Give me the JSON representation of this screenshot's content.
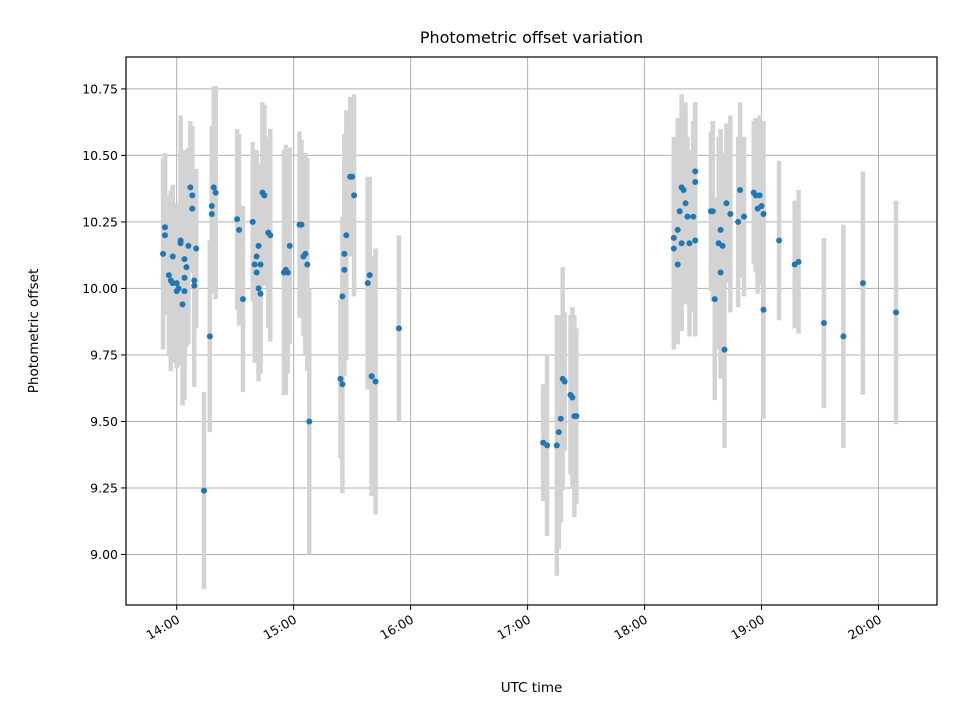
{
  "chart_data": {
    "type": "scatter",
    "title": "Photometric offset variation",
    "xlabel": "UTC time",
    "ylabel": "Photometric offset",
    "x_axis_kind": "time (hours, UTC)",
    "xlim": [
      "13:34",
      "20:30"
    ],
    "ylim": [
      8.81,
      10.87
    ],
    "x_ticks": [
      "14:00",
      "15:00",
      "16:00",
      "17:00",
      "18:00",
      "19:00",
      "20:00"
    ],
    "y_ticks": [
      "9.00",
      "9.25",
      "9.50",
      "9.75",
      "10.00",
      "10.25",
      "10.50",
      "10.75"
    ],
    "grid": true,
    "colors": {
      "points": "#1f77b4",
      "errorbars": "#d3d3d3",
      "grid": "#b0b0b0"
    },
    "series": [
      {
        "points": [
          {
            "x": "13:53",
            "y": 10.13,
            "yerr": 0.36
          },
          {
            "x": "13:54",
            "y": 10.2,
            "yerr": 0.3
          },
          {
            "x": "13:54",
            "y": 10.23,
            "yerr": 0.28
          },
          {
            "x": "13:56",
            "y": 10.05,
            "yerr": 0.3
          },
          {
            "x": "13:57",
            "y": 10.03,
            "yerr": 0.34
          },
          {
            "x": "13:58",
            "y": 10.12,
            "yerr": 0.27
          },
          {
            "x": "13:58",
            "y": 10.02,
            "yerr": 0.3
          },
          {
            "x": "14:00",
            "y": 10.02,
            "yerr": 0.3
          },
          {
            "x": "14:00",
            "y": 9.99,
            "yerr": 0.29
          },
          {
            "x": "14:01",
            "y": 10.0,
            "yerr": 0.28
          },
          {
            "x": "14:02",
            "y": 10.17,
            "yerr": 0.35
          },
          {
            "x": "14:02",
            "y": 10.18,
            "yerr": 0.47
          },
          {
            "x": "14:03",
            "y": 9.94,
            "yerr": 0.38
          },
          {
            "x": "14:04",
            "y": 10.11,
            "yerr": 0.41
          },
          {
            "x": "14:04",
            "y": 9.99,
            "yerr": 0.41
          },
          {
            "x": "14:04",
            "y": 10.04,
            "yerr": 0.34
          },
          {
            "x": "14:05",
            "y": 10.08,
            "yerr": 0.3
          },
          {
            "x": "14:06",
            "y": 10.16,
            "yerr": 0.37
          },
          {
            "x": "14:07",
            "y": 10.38,
            "yerr": 0.25
          },
          {
            "x": "14:08",
            "y": 10.35,
            "yerr": 0.26
          },
          {
            "x": "14:08",
            "y": 10.3,
            "yerr": 0.24
          },
          {
            "x": "14:09",
            "y": 10.01,
            "yerr": 0.38
          },
          {
            "x": "14:09",
            "y": 10.03,
            "yerr": 0.3
          },
          {
            "x": "14:10",
            "y": 10.15,
            "yerr": 0.3
          },
          {
            "x": "14:14",
            "y": 9.24,
            "yerr": 0.37
          },
          {
            "x": "14:17",
            "y": 9.82,
            "yerr": 0.36
          },
          {
            "x": "14:18",
            "y": 10.31,
            "yerr": 0.3
          },
          {
            "x": "14:18",
            "y": 10.28,
            "yerr": 0.3
          },
          {
            "x": "14:19",
            "y": 10.38,
            "yerr": 0.38
          },
          {
            "x": "14:20",
            "y": 10.36,
            "yerr": 0.4
          },
          {
            "x": "14:31",
            "y": 10.26,
            "yerr": 0.34
          },
          {
            "x": "14:32",
            "y": 10.22,
            "yerr": 0.36
          },
          {
            "x": "14:34",
            "y": 9.96,
            "yerr": 0.35
          },
          {
            "x": "14:39",
            "y": 10.25,
            "yerr": 0.3
          },
          {
            "x": "14:40",
            "y": 10.09,
            "yerr": 0.37
          },
          {
            "x": "14:41",
            "y": 10.12,
            "yerr": 0.4
          },
          {
            "x": "14:41",
            "y": 10.06,
            "yerr": 0.3
          },
          {
            "x": "14:42",
            "y": 10.16,
            "yerr": 0.3
          },
          {
            "x": "14:42",
            "y": 10.0,
            "yerr": 0.35
          },
          {
            "x": "14:43",
            "y": 9.98,
            "yerr": 0.3
          },
          {
            "x": "14:43",
            "y": 10.09,
            "yerr": 0.38
          },
          {
            "x": "14:44",
            "y": 10.36,
            "yerr": 0.34
          },
          {
            "x": "14:45",
            "y": 10.35,
            "yerr": 0.34
          },
          {
            "x": "14:47",
            "y": 10.21,
            "yerr": 0.36
          },
          {
            "x": "14:48",
            "y": 10.2,
            "yerr": 0.4
          },
          {
            "x": "14:55",
            "y": 10.06,
            "yerr": 0.46
          },
          {
            "x": "14:56",
            "y": 10.07,
            "yerr": 0.47
          },
          {
            "x": "14:57",
            "y": 10.06,
            "yerr": 0.38
          },
          {
            "x": "14:58",
            "y": 10.16,
            "yerr": 0.37
          },
          {
            "x": "15:03",
            "y": 10.24,
            "yerr": 0.35
          },
          {
            "x": "15:04",
            "y": 10.24,
            "yerr": 0.32
          },
          {
            "x": "15:05",
            "y": 10.12,
            "yerr": 0.3
          },
          {
            "x": "15:06",
            "y": 10.13,
            "yerr": 0.38
          },
          {
            "x": "15:07",
            "y": 10.09,
            "yerr": 0.4
          },
          {
            "x": "15:08",
            "y": 9.5,
            "yerr": 0.5
          },
          {
            "x": "15:24",
            "y": 9.66,
            "yerr": 0.3
          },
          {
            "x": "15:25",
            "y": 9.64,
            "yerr": 0.41
          },
          {
            "x": "15:25",
            "y": 9.97,
            "yerr": 0.3
          },
          {
            "x": "15:26",
            "y": 10.07,
            "yerr": 0.4
          },
          {
            "x": "15:26",
            "y": 10.13,
            "yerr": 0.45
          },
          {
            "x": "15:27",
            "y": 10.2,
            "yerr": 0.47
          },
          {
            "x": "15:29",
            "y": 10.42,
            "yerr": 0.3
          },
          {
            "x": "15:30",
            "y": 10.42,
            "yerr": 0.3
          },
          {
            "x": "15:31",
            "y": 10.35,
            "yerr": 0.38
          },
          {
            "x": "15:38",
            "y": 10.02,
            "yerr": 0.4
          },
          {
            "x": "15:39",
            "y": 10.05,
            "yerr": 0.37
          },
          {
            "x": "15:40",
            "y": 9.67,
            "yerr": 0.45
          },
          {
            "x": "15:40",
            "y": 9.67,
            "yerr": 0.45
          },
          {
            "x": "15:42",
            "y": 9.65,
            "yerr": 0.5
          },
          {
            "x": "15:54",
            "y": 9.85,
            "yerr": 0.35
          },
          {
            "x": "17:08",
            "y": 9.42,
            "yerr": 0.22
          },
          {
            "x": "17:10",
            "y": 9.41,
            "yerr": 0.34
          },
          {
            "x": "17:15",
            "y": 9.41,
            "yerr": 0.49
          },
          {
            "x": "17:16",
            "y": 9.46,
            "yerr": 0.44
          },
          {
            "x": "17:17",
            "y": 9.51,
            "yerr": 0.39
          },
          {
            "x": "17:18",
            "y": 9.66,
            "yerr": 0.42
          },
          {
            "x": "17:19",
            "y": 9.65,
            "yerr": 0.26
          },
          {
            "x": "17:22",
            "y": 9.6,
            "yerr": 0.3
          },
          {
            "x": "17:23",
            "y": 9.59,
            "yerr": 0.34
          },
          {
            "x": "17:24",
            "y": 9.52,
            "yerr": 0.38
          },
          {
            "x": "17:25",
            "y": 9.52,
            "yerr": 0.33
          },
          {
            "x": "18:15",
            "y": 10.19,
            "yerr": 0.38
          },
          {
            "x": "18:15",
            "y": 10.15,
            "yerr": 0.38
          },
          {
            "x": "18:17",
            "y": 10.09,
            "yerr": 0.3
          },
          {
            "x": "18:17",
            "y": 10.22,
            "yerr": 0.42
          },
          {
            "x": "18:18",
            "y": 10.29,
            "yerr": 0.33
          },
          {
            "x": "18:19",
            "y": 10.17,
            "yerr": 0.33
          },
          {
            "x": "18:19",
            "y": 10.38,
            "yerr": 0.35
          },
          {
            "x": "18:20",
            "y": 10.37,
            "yerr": 0.3
          },
          {
            "x": "18:21",
            "y": 10.32,
            "yerr": 0.38
          },
          {
            "x": "18:22",
            "y": 10.27,
            "yerr": 0.3
          },
          {
            "x": "18:23",
            "y": 10.17,
            "yerr": 0.35
          },
          {
            "x": "18:25",
            "y": 10.27,
            "yerr": 0.36
          },
          {
            "x": "18:26",
            "y": 10.4,
            "yerr": 0.3
          },
          {
            "x": "18:26",
            "y": 10.44,
            "yerr": 0.26
          },
          {
            "x": "18:26",
            "y": 10.18,
            "yerr": 0.36
          },
          {
            "x": "18:34",
            "y": 10.29,
            "yerr": 0.3
          },
          {
            "x": "18:35",
            "y": 10.29,
            "yerr": 0.34
          },
          {
            "x": "18:36",
            "y": 9.96,
            "yerr": 0.38
          },
          {
            "x": "18:38",
            "y": 10.17,
            "yerr": 0.4
          },
          {
            "x": "18:39",
            "y": 10.22,
            "yerr": 0.38
          },
          {
            "x": "18:39",
            "y": 10.06,
            "yerr": 0.4
          },
          {
            "x": "18:40",
            "y": 10.16,
            "yerr": 0.35
          },
          {
            "x": "18:41",
            "y": 9.77,
            "yerr": 0.37
          },
          {
            "x": "18:42",
            "y": 10.32,
            "yerr": 0.3
          },
          {
            "x": "18:44",
            "y": 10.28,
            "yerr": 0.37
          },
          {
            "x": "18:48",
            "y": 10.25,
            "yerr": 0.32
          },
          {
            "x": "18:49",
            "y": 10.37,
            "yerr": 0.33
          },
          {
            "x": "18:51",
            "y": 10.27,
            "yerr": 0.3
          },
          {
            "x": "18:56",
            "y": 10.36,
            "yerr": 0.27
          },
          {
            "x": "18:57",
            "y": 10.35,
            "yerr": 0.29
          },
          {
            "x": "18:58",
            "y": 10.3,
            "yerr": 0.32
          },
          {
            "x": "18:59",
            "y": 10.35,
            "yerr": 0.3
          },
          {
            "x": "19:00",
            "y": 10.31,
            "yerr": 0.3
          },
          {
            "x": "19:01",
            "y": 9.92,
            "yerr": 0.41
          },
          {
            "x": "19:01",
            "y": 10.28,
            "yerr": 0.35
          },
          {
            "x": "19:09",
            "y": 10.18,
            "yerr": 0.3
          },
          {
            "x": "19:17",
            "y": 10.09,
            "yerr": 0.24
          },
          {
            "x": "19:19",
            "y": 10.1,
            "yerr": 0.27
          },
          {
            "x": "19:32",
            "y": 9.87,
            "yerr": 0.32
          },
          {
            "x": "19:42",
            "y": 9.82,
            "yerr": 0.42
          },
          {
            "x": "19:52",
            "y": 10.02,
            "yerr": 0.42
          },
          {
            "x": "20:09",
            "y": 9.91,
            "yerr": 0.42
          }
        ]
      }
    ]
  }
}
